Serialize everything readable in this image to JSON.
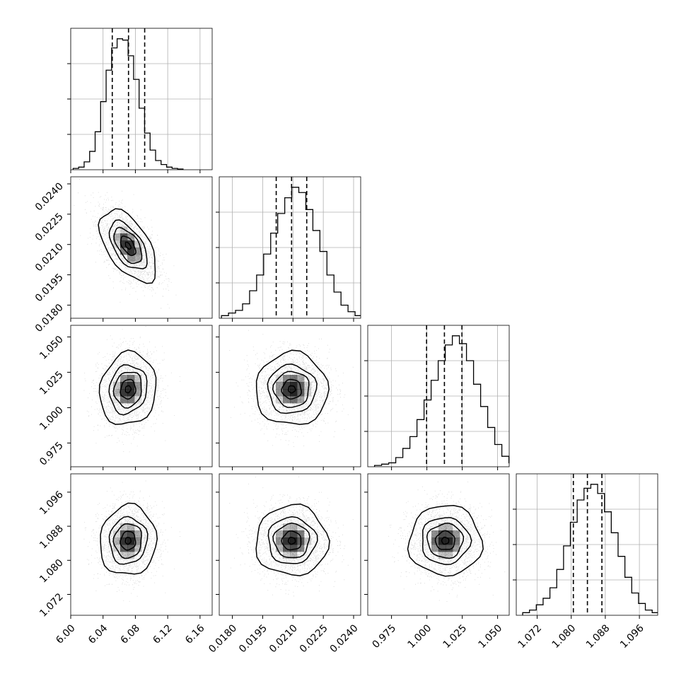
{
  "chart_data": {
    "type": "corner",
    "colors": {
      "line": "#000000",
      "grid": "#b0b0b0",
      "scatter": "#000000",
      "fill": "#000000"
    },
    "grid": true,
    "parameters": [
      {
        "range": [
          6.0,
          6.175
        ],
        "ticks": [
          6.0,
          6.04,
          6.08,
          6.12,
          6.16
        ],
        "tick_labels": [
          "6.00",
          "6.04",
          "6.08",
          "6.12",
          "6.16"
        ],
        "mean": 6.071,
        "sd": 0.017,
        "quantiles": [
          6.0514,
          6.0715,
          6.0915
        ]
      },
      {
        "range": [
          0.01735,
          0.02435
        ],
        "ticks": [
          0.018,
          0.0195,
          0.021,
          0.0225,
          0.024
        ],
        "tick_labels": [
          "0.0180",
          "0.0195",
          "0.0210",
          "0.0225",
          "0.0240"
        ],
        "mean": 0.02094,
        "sd": 0.00087,
        "quantiles": [
          0.02017,
          0.02093,
          0.02168
        ]
      },
      {
        "range": [
          0.9582,
          1.0582
        ],
        "ticks": [
          0.975,
          1.0,
          1.025,
          1.05
        ],
        "tick_labels": [
          "0.975",
          "1.000",
          "1.025",
          "1.050"
        ],
        "mean": 1.013,
        "sd": 0.0125,
        "quantiles": [
          0.9998,
          1.0124,
          1.0248
        ]
      },
      {
        "range": [
          1.0671,
          1.1003
        ],
        "ticks": [
          1.072,
          1.08,
          1.088,
          1.096
        ],
        "tick_labels": [
          "1.072",
          "1.080",
          "1.088",
          "1.096"
        ],
        "mean": 1.0846,
        "sd": 0.004,
        "quantiles": [
          1.0805,
          1.0838,
          1.0872
        ]
      }
    ],
    "correlations": {
      "1-0": -0.55,
      "2-0": 0.1,
      "2-1": 0.0,
      "3-0": 0.05,
      "3-1": 0.0,
      "3-2": 0.0
    },
    "histograms": [
      [
        0.01,
        0.02,
        0.06,
        0.14,
        0.29,
        0.52,
        0.76,
        0.93,
        1.0,
        0.99,
        0.87,
        0.69,
        0.47,
        0.28,
        0.15,
        0.07,
        0.04,
        0.02,
        0.01,
        0.005
      ],
      [
        0.02,
        0.04,
        0.06,
        0.11,
        0.21,
        0.33,
        0.49,
        0.65,
        0.8,
        0.92,
        1.0,
        0.96,
        0.83,
        0.67,
        0.51,
        0.33,
        0.2,
        0.1,
        0.05,
        0.02
      ],
      [
        0.01,
        0.02,
        0.03,
        0.07,
        0.14,
        0.23,
        0.36,
        0.51,
        0.66,
        0.81,
        0.93,
        1.0,
        0.94,
        0.81,
        0.63,
        0.46,
        0.3,
        0.17,
        0.08,
        0.03
      ],
      [
        0.02,
        0.04,
        0.08,
        0.13,
        0.21,
        0.35,
        0.53,
        0.71,
        0.88,
        0.97,
        1.0,
        0.93,
        0.79,
        0.63,
        0.45,
        0.29,
        0.17,
        0.09,
        0.04,
        0.02
      ]
    ]
  }
}
